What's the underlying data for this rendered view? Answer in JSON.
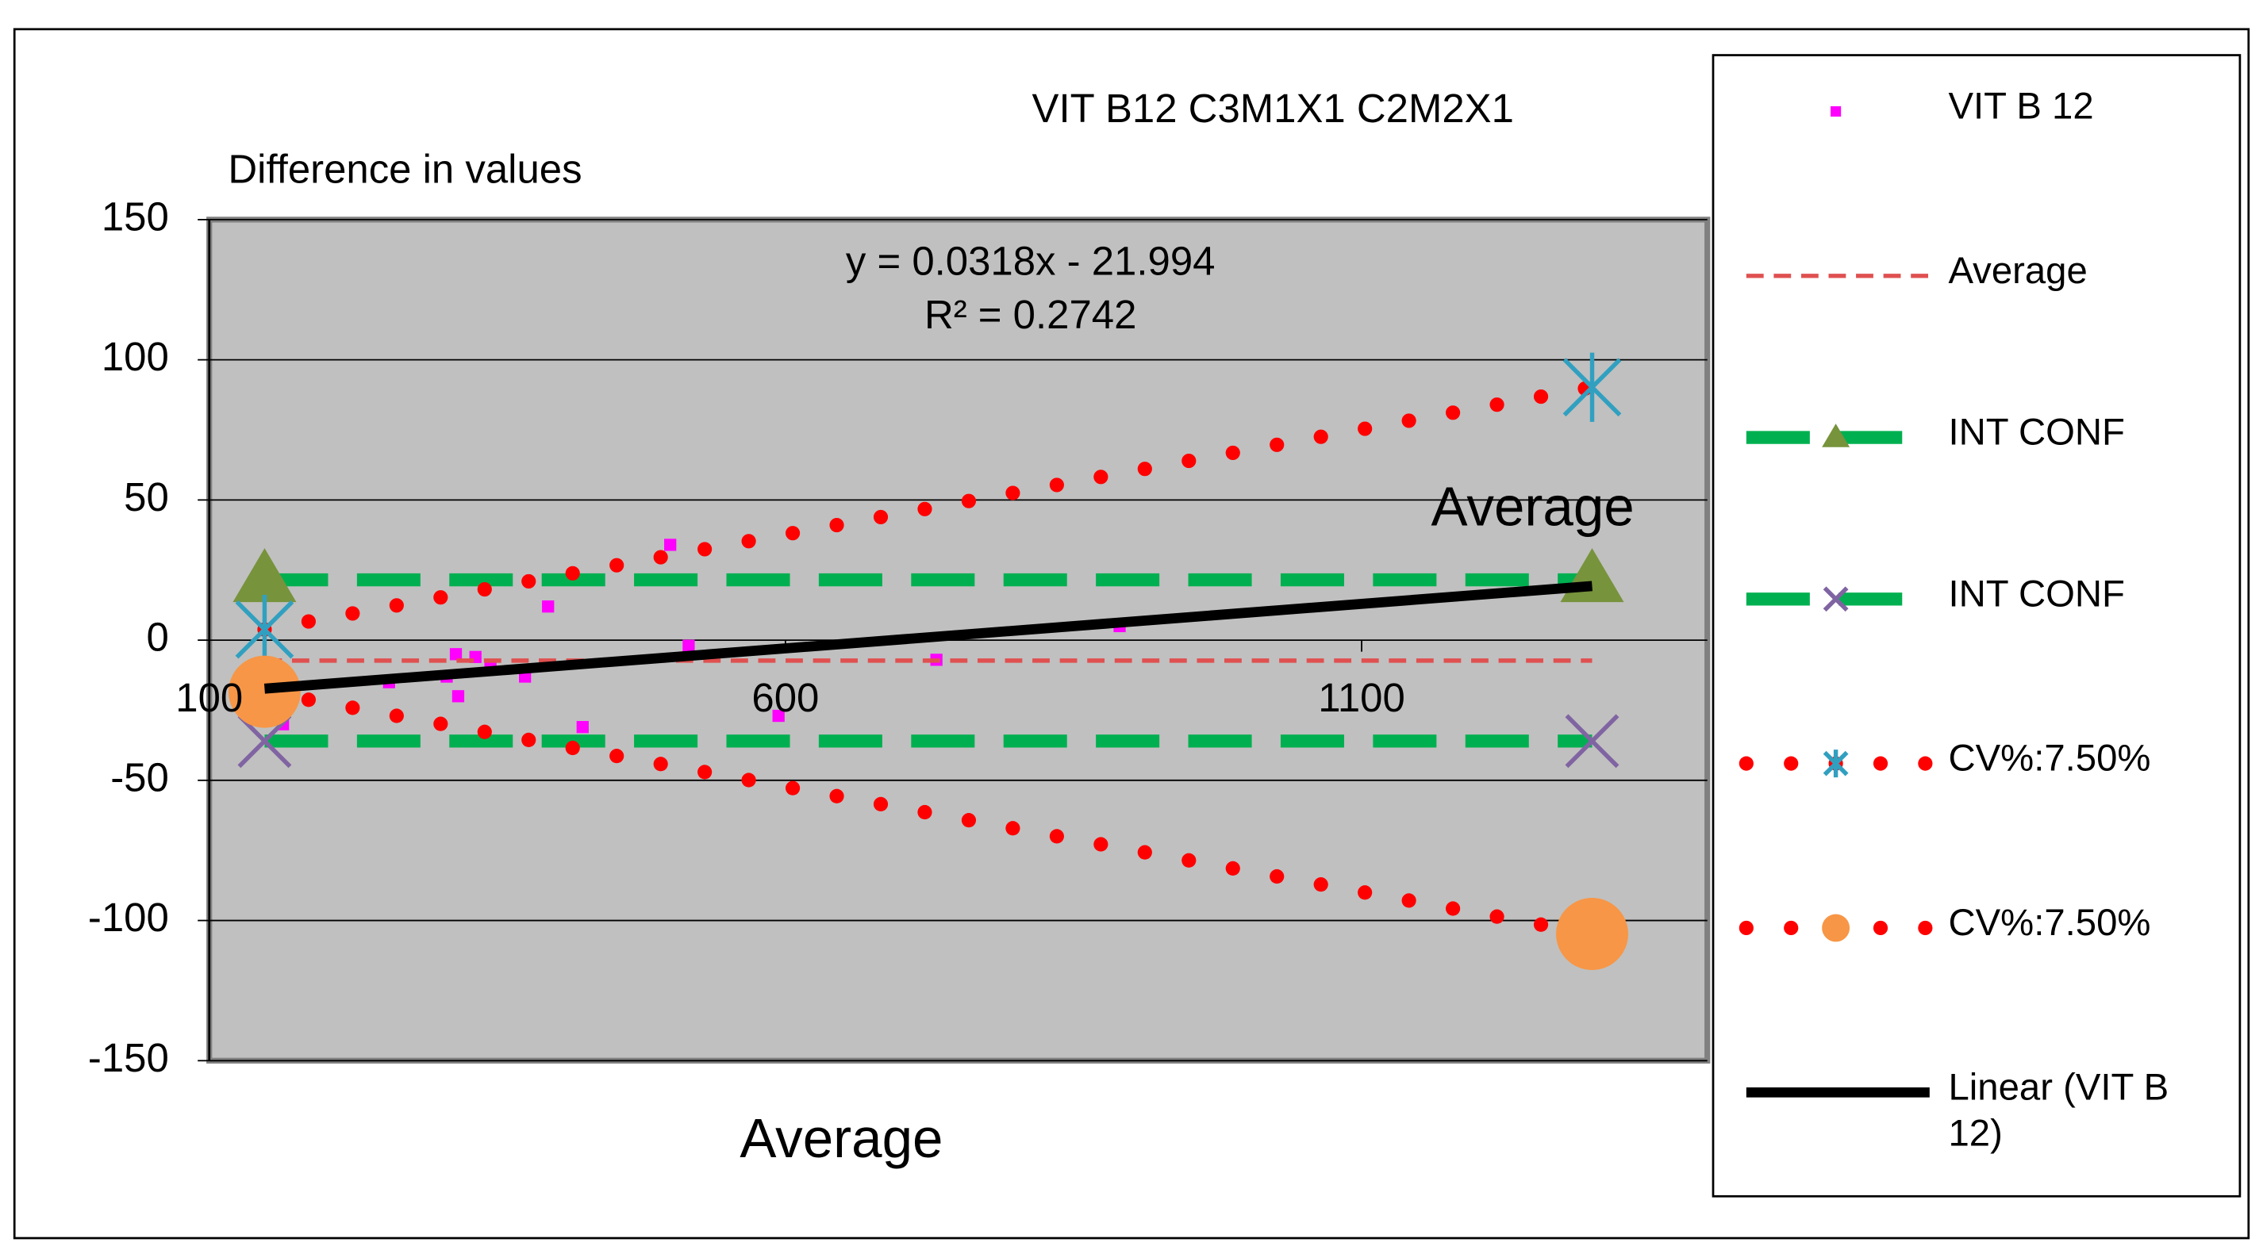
{
  "chart_data": {
    "type": "scatter",
    "title": "VIT B12 C3M1X1 C2M2X1",
    "y_label": "Difference in values",
    "x_label": "Average",
    "annotations": [
      "y = 0.0318x - 21.994",
      "R² = 0.2742",
      "Average"
    ],
    "xlim": [
      100,
      1400
    ],
    "xticks": [
      100,
      600,
      1100
    ],
    "ylim": [
      -150,
      150
    ],
    "yticks": [
      -150,
      -100,
      -50,
      0,
      50,
      100,
      150
    ],
    "grid": true,
    "legend": "right",
    "series": [
      {
        "name": "VIT B 12",
        "color": "#ff00ff",
        "marker": "square",
        "line": "none",
        "x": [
          148,
          164,
          256,
          306,
          314,
          316,
          331,
          344,
          374,
          394,
          424,
          500,
          516,
          594,
          731,
          890,
          1300
        ],
        "values": [
          -18,
          -30,
          -15,
          -13,
          -5,
          -20,
          -6,
          -9,
          -13,
          12,
          -31,
          34,
          -2,
          -27,
          -7,
          5,
          20
        ]
      },
      {
        "name": "Average",
        "color": "#e05050",
        "marker": "none",
        "line": "dashed-thin",
        "x": [
          148,
          1300
        ],
        "values": [
          -7.3,
          -7.3
        ]
      },
      {
        "name": "INT CONF",
        "color": "#00b050",
        "marker": "triangle",
        "marker_color": "#77933c",
        "line": "dashed-thick",
        "x": [
          148,
          1300
        ],
        "values": [
          21.5,
          21.5
        ]
      },
      {
        "name": "INT CONF",
        "color": "#00b050",
        "marker": "x",
        "marker_color": "#8064a2",
        "line": "dashed-thick",
        "x": [
          148,
          1300
        ],
        "values": [
          -36,
          -36
        ]
      },
      {
        "name": "CV%:7.50%",
        "color": "#ff0000",
        "marker": "star",
        "marker_color": "#31a0c0",
        "line": "dotted",
        "x": [
          148,
          1300
        ],
        "values": [
          3.8,
          90.2
        ]
      },
      {
        "name": "CV%:7.50%",
        "color": "#ff0000",
        "marker": "circle",
        "marker_color": "#f79646",
        "line": "dotted",
        "x": [
          148,
          1300
        ],
        "values": [
          -18.4,
          -104.8
        ]
      },
      {
        "name": "Linear (VIT B 12)",
        "color": "#000000",
        "marker": "none",
        "line": "solid",
        "x": [
          148,
          1300
        ],
        "values": [
          -17.3,
          19.3
        ]
      }
    ]
  }
}
